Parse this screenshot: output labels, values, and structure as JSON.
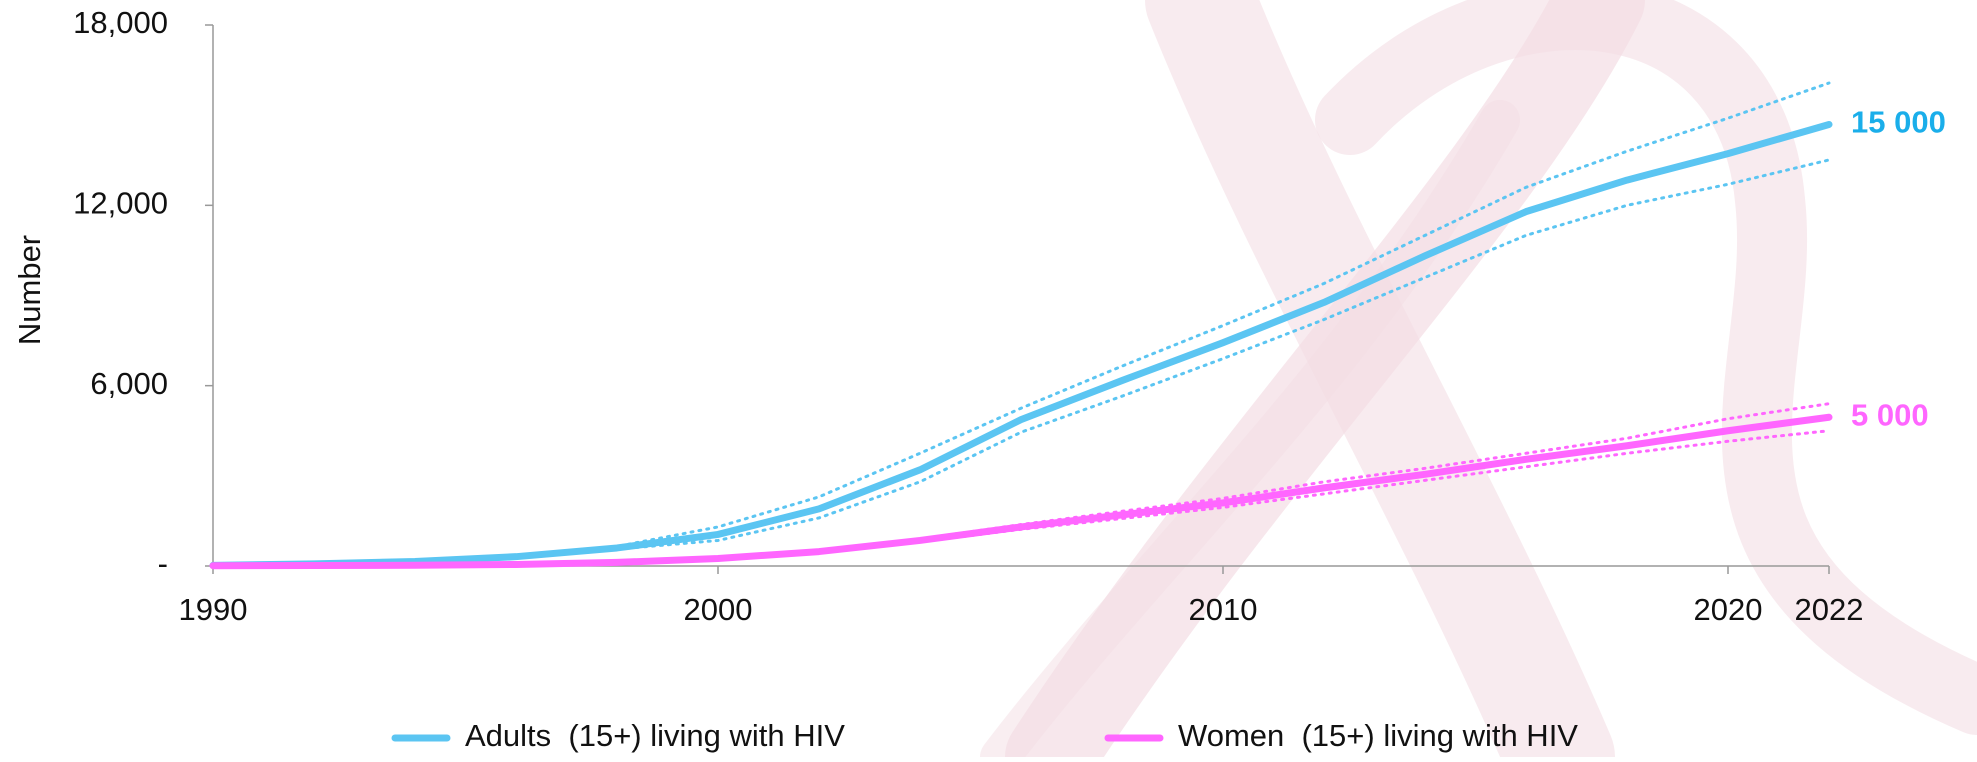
{
  "chart_data": {
    "type": "line",
    "y_label": "Number",
    "x": [
      1990,
      1992,
      1994,
      1996,
      1998,
      2000,
      2002,
      2004,
      2006,
      2008,
      2010,
      2012,
      2014,
      2016,
      2018,
      2020,
      2022
    ],
    "xlim": [
      1990,
      2022
    ],
    "xticks": [
      1990,
      2000,
      2010,
      2020,
      2022
    ],
    "ylim": [
      0,
      18000
    ],
    "yticks": [
      {
        "value": 0,
        "label": "-"
      },
      {
        "value": 6000,
        "label": "6,000"
      },
      {
        "value": 12000,
        "label": "12,000"
      },
      {
        "value": 18000,
        "label": "18,000"
      }
    ],
    "series": [
      {
        "name": "Adults  (15+) living with HIV",
        "color": "#5bc5f2",
        "label_color": "#1aaeea",
        "end_label": "15 000",
        "values": [
          20,
          70,
          150,
          310,
          600,
          1050,
          1900,
          3200,
          4870,
          6170,
          7430,
          8770,
          10320,
          11790,
          12840,
          13720,
          14690
        ],
        "upper": [
          20,
          75,
          165,
          340,
          650,
          1300,
          2300,
          3750,
          5250,
          6650,
          8000,
          9400,
          11000,
          12600,
          13800,
          14900,
          16070
        ],
        "lower": [
          20,
          65,
          140,
          290,
          560,
          850,
          1600,
          2800,
          4450,
          5650,
          6900,
          8200,
          9600,
          11000,
          12000,
          12700,
          13510
        ]
      },
      {
        "name": "Women  (15+) living with HIV",
        "color": "#ff66ff",
        "label_color": "#ff66ff",
        "end_label": "5 000",
        "values": [
          10,
          15,
          25,
          50,
          120,
          250,
          480,
          850,
          1300,
          1700,
          2100,
          2600,
          3050,
          3550,
          4000,
          4500,
          4950
        ],
        "upper": [
          10,
          15,
          27,
          55,
          130,
          270,
          510,
          900,
          1380,
          1820,
          2250,
          2800,
          3250,
          3750,
          4250,
          4900,
          5400
        ],
        "lower": [
          10,
          15,
          23,
          45,
          110,
          230,
          450,
          800,
          1220,
          1580,
          1950,
          2400,
          2850,
          3300,
          3750,
          4150,
          4500
        ]
      }
    ]
  }
}
